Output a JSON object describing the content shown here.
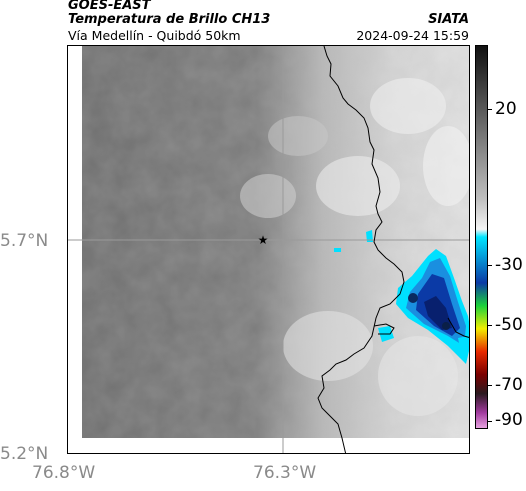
{
  "header": {
    "satellite": "GOES-EAST",
    "product": "Temperatura de Brillo CH13",
    "organization": "SIATA",
    "region": "Vía Medellín - Quibdó 50km",
    "datetime": "2024-09-24 15:59"
  },
  "map": {
    "lat_ticks": [
      "5.7°N",
      "5.2°N"
    ],
    "lon_ticks": [
      "76.8°W",
      "76.3°W"
    ],
    "marker_icon": "star-icon",
    "coastline_color": "#000000",
    "gridline_color": "#9a9a9a"
  },
  "colorbar": {
    "tick_labels": [
      "20",
      "-30",
      "-50",
      "-70",
      "-90"
    ],
    "palette": [
      "#111111",
      "#bfbfbf",
      "#f5f5f5",
      "#00e5ff",
      "#0b3aa6",
      "#1bd23b",
      "#f2ee00",
      "#e82a00",
      "#7a0000",
      "#2b1a20",
      "#a23b9f",
      "#e7a3e0"
    ]
  }
}
